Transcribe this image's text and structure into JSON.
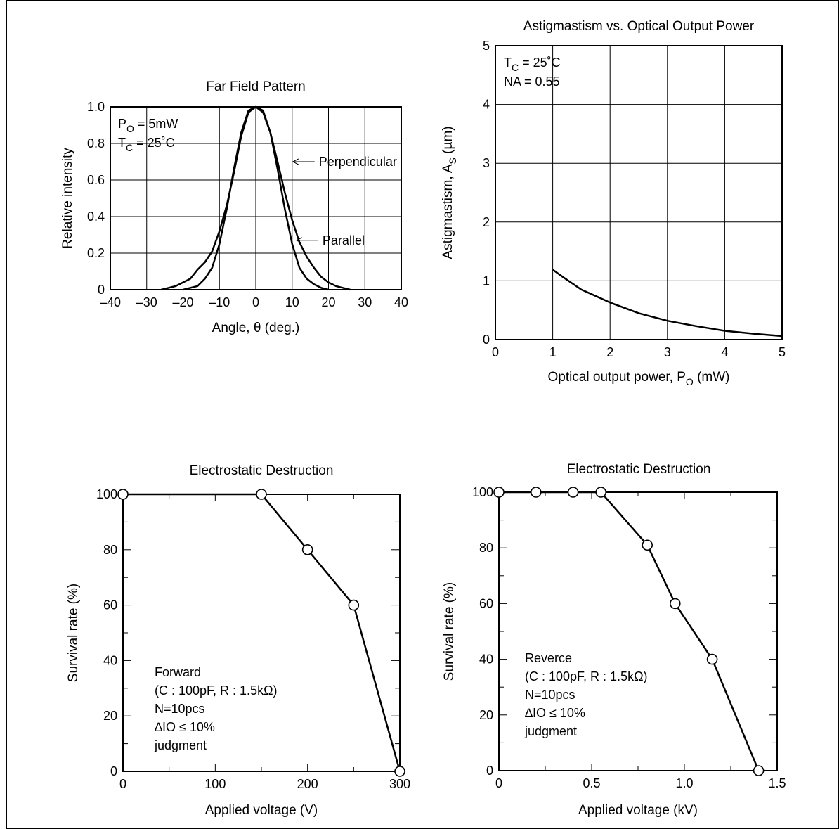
{
  "chart_data": [
    {
      "id": "ffp",
      "type": "line",
      "title": "Far Field Pattern",
      "xlabel": "Angle, θ  (deg.)",
      "ylabel": "Relative intensity",
      "xlim": [
        -40,
        40
      ],
      "ylim": [
        0,
        1.0
      ],
      "xticks": [
        -40,
        -30,
        -20,
        -10,
        0,
        10,
        20,
        30,
        40
      ],
      "xtick_labels": [
        "–40",
        "–30",
        "–20",
        "–10",
        "0",
        "10",
        "20",
        "30",
        "40"
      ],
      "yticks": [
        0,
        0.2,
        0.4,
        0.6,
        0.8,
        1.0
      ],
      "ytick_labels": [
        "0",
        "0.2",
        "0.4",
        "0.6",
        "0.8",
        "1.0"
      ],
      "grid": true,
      "conditions": [
        {
          "main": "P",
          "sub": "O",
          "rest": " = 5mW"
        },
        {
          "main": "T",
          "sub": "C",
          "rest": " = 25˚C"
        }
      ],
      "series": [
        {
          "name": "Perpendicular",
          "label_at": [
            10,
            0.7
          ],
          "x": [
            -26,
            -22,
            -18,
            -16,
            -14,
            -12,
            -10,
            -8,
            -6,
            -4,
            -2,
            0,
            2,
            4,
            6,
            8,
            10,
            12,
            14,
            16,
            18,
            20,
            22,
            24,
            26
          ],
          "y": [
            0,
            0.02,
            0.06,
            0.11,
            0.15,
            0.21,
            0.32,
            0.46,
            0.64,
            0.84,
            0.97,
            1.0,
            0.97,
            0.86,
            0.7,
            0.53,
            0.38,
            0.26,
            0.18,
            0.12,
            0.07,
            0.04,
            0.02,
            0.01,
            0
          ]
        },
        {
          "name": "Parallel",
          "label_at": [
            11,
            0.27
          ],
          "x": [
            -20,
            -16,
            -14,
            -12,
            -10,
            -8,
            -6,
            -4,
            -2,
            0,
            2,
            4,
            6,
            8,
            10,
            12,
            14,
            16,
            18,
            20
          ],
          "y": [
            0,
            0.02,
            0.06,
            0.12,
            0.25,
            0.44,
            0.66,
            0.86,
            0.98,
            1.0,
            0.98,
            0.86,
            0.66,
            0.44,
            0.25,
            0.12,
            0.06,
            0.03,
            0.01,
            0
          ]
        }
      ]
    },
    {
      "id": "astig",
      "type": "line",
      "title": "Astigmastism vs. Optical Output Power",
      "xlabel": {
        "main": "Optical output power,  P",
        "sub": "O",
        "rest": "  (mW)"
      },
      "ylabel": {
        "main": "Astigmastism,  A",
        "sub": "S",
        "rest": "  (µm)"
      },
      "xlim": [
        0,
        5
      ],
      "ylim": [
        0,
        5
      ],
      "xticks": [
        0,
        1,
        2,
        3,
        4,
        5
      ],
      "xtick_labels": [
        "0",
        "1",
        "2",
        "3",
        "4",
        "5"
      ],
      "yticks": [
        0,
        1,
        2,
        3,
        4,
        5
      ],
      "ytick_labels": [
        "0",
        "1",
        "2",
        "3",
        "4",
        "5"
      ],
      "grid": true,
      "conditions": [
        {
          "main": "T",
          "sub": "C",
          "rest": " = 25˚C"
        },
        {
          "main": "NA = 0.55",
          "sub": "",
          "rest": ""
        }
      ],
      "series": [
        {
          "x": [
            1,
            1.2,
            1.5,
            1.8,
            2,
            2.5,
            3,
            3.5,
            4,
            4.5,
            5
          ],
          "y": [
            1.19,
            1.05,
            0.85,
            0.72,
            0.63,
            0.45,
            0.32,
            0.23,
            0.15,
            0.1,
            0.06
          ]
        }
      ]
    },
    {
      "id": "esd_fwd",
      "type": "line",
      "markers": true,
      "title": "Electrostatic Destruction",
      "xlabel": "Applied voltage  (V)",
      "ylabel": "Survival rate  (%)",
      "xlim": [
        0,
        300
      ],
      "ylim": [
        0,
        100
      ],
      "xticks": [
        0,
        100,
        200,
        300
      ],
      "xtick_labels": [
        "0",
        "100",
        "200",
        "300"
      ],
      "yticks": [
        0,
        20,
        40,
        60,
        80,
        100
      ],
      "ytick_labels": [
        "0",
        "20",
        "40",
        "60",
        "80",
        "100"
      ],
      "minor_xticks": [
        50,
        150,
        250
      ],
      "minor_yticks": [
        10,
        30,
        50,
        70,
        90
      ],
      "grid": false,
      "notes": [
        "Forward",
        " (C : 100pF, R : 1.5kΩ)",
        "N=10pcs",
        "∆IO ≤ 10%",
        "judgment"
      ],
      "series": [
        {
          "x": [
            0,
            150,
            200,
            250,
            300
          ],
          "y": [
            100,
            100,
            80,
            60,
            0
          ]
        }
      ]
    },
    {
      "id": "esd_rev",
      "type": "line",
      "markers": true,
      "title": "Electrostatic Destruction",
      "xlabel": "Applied voltage   (kV)",
      "ylabel": "Survival rate  (%)",
      "xlim": [
        0,
        1.5
      ],
      "ylim": [
        0,
        100
      ],
      "xticks": [
        0,
        0.5,
        1.0,
        1.5
      ],
      "xtick_labels": [
        "0",
        "0.5",
        "1.0",
        "1.5"
      ],
      "yticks": [
        0,
        20,
        40,
        60,
        80,
        100
      ],
      "ytick_labels": [
        "0",
        "20",
        "40",
        "60",
        "80",
        "100"
      ],
      "minor_xticks": [
        0.25,
        0.75,
        1.25
      ],
      "minor_yticks": [
        10,
        30,
        50,
        70,
        90
      ],
      "grid": false,
      "notes": [
        "Reverce",
        " (C : 100pF, R : 1.5kΩ)",
        "N=10pcs",
        " ∆IO ≤ 10%",
        "judgment"
      ],
      "series": [
        {
          "x": [
            0,
            0.2,
            0.4,
            0.55,
            0.8,
            0.95,
            1.15,
            1.4
          ],
          "y": [
            100,
            100,
            100,
            100,
            81,
            60,
            40,
            0
          ]
        }
      ]
    }
  ]
}
